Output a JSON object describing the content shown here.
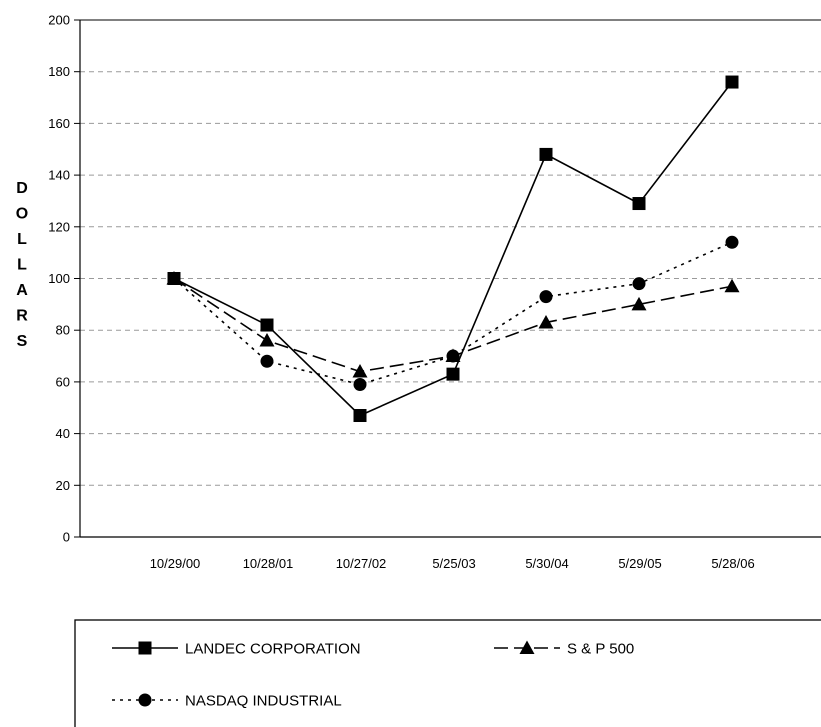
{
  "chart_data": {
    "type": "line",
    "title": "",
    "xlabel": "",
    "ylabel": "DOLLARS",
    "categories": [
      "10/29/00",
      "10/28/01",
      "10/27/02",
      "5/25/03",
      "5/30/04",
      "5/29/05",
      "5/28/06"
    ],
    "ylim": [
      0,
      200
    ],
    "yticks": [
      0,
      20,
      40,
      60,
      80,
      100,
      120,
      140,
      160,
      180,
      200
    ],
    "grid": true,
    "legend_position": "bottom",
    "series": [
      {
        "name": "LANDEC CORPORATION",
        "values": [
          100,
          82,
          47,
          63,
          148,
          129,
          176
        ],
        "marker": "square",
        "line_style": "solid",
        "color": "#000000"
      },
      {
        "name": "S & P 500",
        "values": [
          100,
          76,
          64,
          70,
          83,
          90,
          97
        ],
        "marker": "triangle",
        "line_style": "dashed",
        "color": "#000000"
      },
      {
        "name": "NASDAQ INDUSTRIAL",
        "values": [
          100,
          68,
          59,
          70,
          93,
          98,
          114
        ],
        "marker": "circle",
        "line_style": "dotted",
        "color": "#000000"
      }
    ]
  }
}
